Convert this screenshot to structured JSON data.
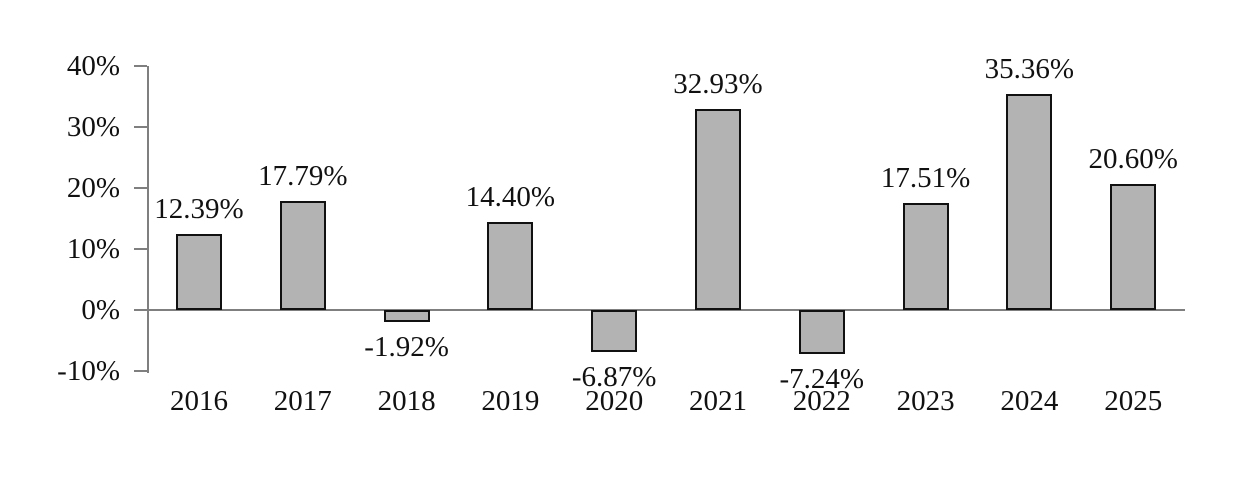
{
  "chart_data": {
    "type": "bar",
    "title": "",
    "xlabel": "",
    "ylabel": "",
    "categories": [
      "2016",
      "2017",
      "2018",
      "2019",
      "2020",
      "2021",
      "2022",
      "2023",
      "2024",
      "2025"
    ],
    "values": [
      12.39,
      17.79,
      -1.92,
      14.4,
      -6.87,
      32.93,
      -7.24,
      17.51,
      35.36,
      20.6
    ],
    "value_labels": [
      "12.39%",
      "17.79%",
      "-1.92%",
      "14.40%",
      "-6.87%",
      "32.93%",
      "-7.24%",
      "17.51%",
      "35.36%",
      "20.60%"
    ],
    "y_axis": {
      "tick_values": [
        40,
        30,
        20,
        10,
        0,
        -10
      ],
      "tick_labels": [
        "40%",
        "30%",
        "20%",
        "10%",
        "0%",
        "-10%"
      ]
    },
    "ylim": [
      -10,
      40
    ],
    "grid": "off",
    "legend": "none",
    "layout_hints": {
      "bar_labels_position": "outside-end",
      "baseline_axis_at_zero": true
    },
    "colors": {
      "bar_fill": "#b3b3b3",
      "bar_border": "#111111",
      "axis": "#7f7f7f",
      "text": "#111111",
      "background": "#ffffff"
    }
  }
}
